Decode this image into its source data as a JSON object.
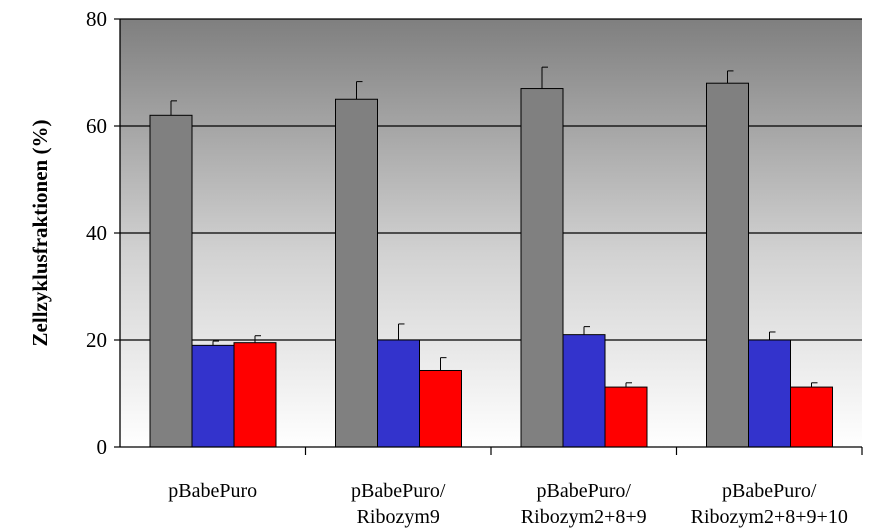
{
  "chart_data": {
    "type": "bar",
    "title": "",
    "xlabel": "",
    "ylabel": "Zellzyklusfraktionen (%)",
    "ylim": [
      0,
      80
    ],
    "yticks": [
      0,
      20,
      40,
      60,
      80
    ],
    "grid": true,
    "legend": "none",
    "categories": [
      [
        "pBabePuro"
      ],
      [
        "pBabePuro/",
        "Ribozym9"
      ],
      [
        "pBabePuro/",
        "Ribozym2+8+9"
      ],
      [
        "pBabePuro/",
        "Ribozym2+8+9+10"
      ]
    ],
    "series": [
      {
        "values": [
          62,
          65,
          67,
          68
        ],
        "errors": [
          2.7,
          3.3,
          4.0,
          2.3
        ],
        "color": "#808080"
      },
      {
        "values": [
          19,
          20,
          21,
          20
        ],
        "errors": [
          0.8,
          3.0,
          1.5,
          1.5
        ],
        "color": "#3333cc"
      },
      {
        "values": [
          19.5,
          14.3,
          11.2,
          11.2
        ],
        "errors": [
          1.3,
          2.4,
          0.8,
          0.8
        ],
        "color": "#ff0000"
      }
    ],
    "plot_background": "gradient dark gray (top) to white (bottom)"
  }
}
